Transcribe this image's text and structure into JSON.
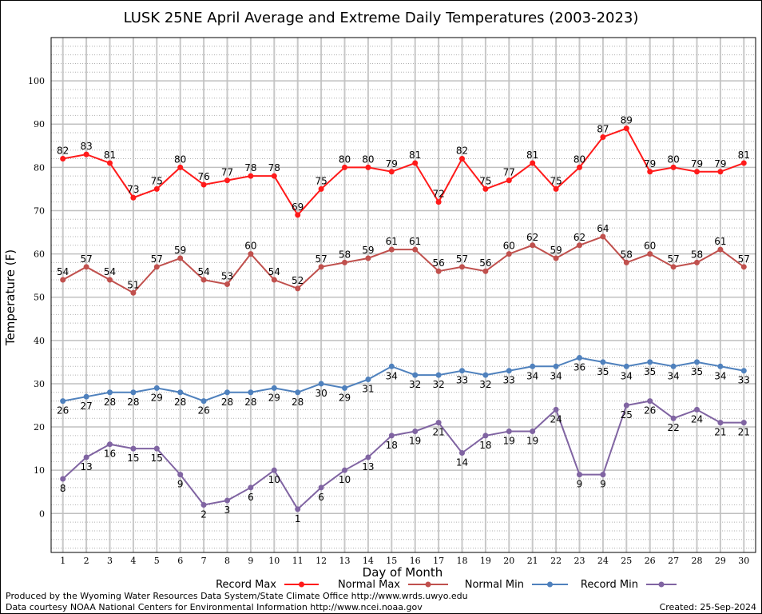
{
  "chart_data": {
    "type": "line",
    "title": "LUSK 25NE April Average and Extreme Daily Temperatures (2003-2023)",
    "xlabel": "Day of Month",
    "ylabel": "Temperature (F)",
    "xlim": [
      0.5,
      30.5
    ],
    "ylim": [
      -9,
      110
    ],
    "y_ticks": [
      0,
      10,
      20,
      30,
      40,
      50,
      60,
      70,
      80,
      90,
      100
    ],
    "x": [
      1,
      2,
      3,
      4,
      5,
      6,
      7,
      8,
      9,
      10,
      11,
      12,
      13,
      14,
      15,
      16,
      17,
      18,
      19,
      20,
      21,
      22,
      23,
      24,
      25,
      26,
      27,
      28,
      29,
      30
    ],
    "grid": true,
    "legend_position": "bottom",
    "series": [
      {
        "name": "Record Max",
        "color": "#ff1a1a",
        "label_position": "above",
        "values": [
          82,
          83,
          81,
          73,
          75,
          80,
          76,
          77,
          78,
          78,
          69,
          75,
          80,
          80,
          79,
          81,
          72,
          82,
          75,
          77,
          81,
          75,
          80,
          87,
          89,
          79,
          80,
          79,
          79,
          81
        ]
      },
      {
        "name": "Normal Max",
        "color": "#c0504d",
        "label_position": "above",
        "values": [
          54,
          57,
          54,
          51,
          57,
          59,
          54,
          53,
          60,
          54,
          52,
          57,
          58,
          59,
          61,
          61,
          56,
          57,
          56,
          60,
          62,
          59,
          62,
          64,
          58,
          60,
          57,
          58,
          61,
          57
        ]
      },
      {
        "name": "Normal Min",
        "color": "#4f81bd",
        "label_position": "below",
        "values": [
          26,
          27,
          28,
          28,
          29,
          28,
          26,
          28,
          28,
          29,
          28,
          30,
          29,
          31,
          34,
          32,
          32,
          33,
          32,
          33,
          34,
          34,
          36,
          35,
          34,
          35,
          34,
          35,
          34,
          33
        ]
      },
      {
        "name": "Record Min",
        "color": "#8064a2",
        "label_position": "below",
        "values": [
          8,
          13,
          16,
          15,
          15,
          9,
          2,
          3,
          6,
          10,
          1,
          6,
          10,
          13,
          18,
          19,
          21,
          14,
          18,
          19,
          19,
          24,
          9,
          9,
          25,
          26,
          22,
          24,
          21,
          21
        ]
      }
    ]
  },
  "footer": {
    "produced_by": "Produced by the Wyoming Water Resources Data System/State Climate Office http://www.wrds.uwyo.edu",
    "courtesy": "Data courtesy NOAA National Centers for Environmental Information http://www.ncei.noaa.gov",
    "created": "Created:  25-Sep-2024"
  }
}
